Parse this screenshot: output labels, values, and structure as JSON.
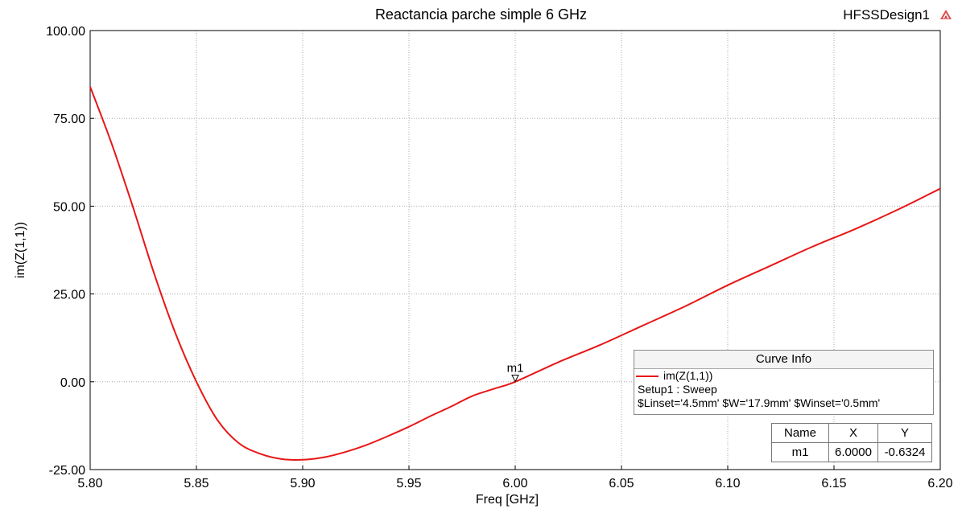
{
  "header": {
    "title": "Reactancia parche simple 6 GHz",
    "design_name": "HFSSDesign1",
    "design_icon": "ansys-logo-icon"
  },
  "chart_data": {
    "type": "line",
    "title": "Reactancia parche simple 6 GHz",
    "xlabel": "Freq [GHz]",
    "ylabel": "im(Z(1,1))",
    "xlim": [
      5.8,
      6.2
    ],
    "ylim": [
      -25.0,
      100.0
    ],
    "xticks": [
      "5.80",
      "5.85",
      "5.90",
      "5.95",
      "6.00",
      "6.05",
      "6.10",
      "6.15",
      "6.20"
    ],
    "yticks": [
      "100.00",
      "75.00",
      "50.00",
      "25.00",
      "0.00",
      "-25.00"
    ],
    "grid": true,
    "series": [
      {
        "name": "im(Z(1,1))",
        "color": "#e81616",
        "x": [
          5.8,
          5.81,
          5.82,
          5.83,
          5.84,
          5.85,
          5.86,
          5.87,
          5.88,
          5.89,
          5.9,
          5.91,
          5.92,
          5.93,
          5.94,
          5.95,
          5.96,
          5.97,
          5.98,
          5.99,
          6.0,
          6.02,
          6.04,
          6.06,
          6.08,
          6.1,
          6.12,
          6.14,
          6.16,
          6.18,
          6.2
        ],
        "y": [
          84.0,
          68.0,
          50.0,
          31.0,
          14.0,
          0.0,
          -11.0,
          -17.5,
          -20.5,
          -22.0,
          -22.2,
          -21.5,
          -20.0,
          -18.0,
          -15.5,
          -12.8,
          -9.8,
          -7.0,
          -4.0,
          -2.0,
          0.0,
          5.5,
          10.5,
          16.0,
          21.5,
          27.5,
          33.0,
          38.5,
          43.5,
          49.0,
          55.0
        ]
      }
    ],
    "markers": [
      {
        "name": "m1",
        "x": 6.0,
        "y": -0.6324
      }
    ]
  },
  "curve_info": {
    "header": "Curve Info",
    "trace_name": "im(Z(1,1))",
    "setup": "Setup1 : Sweep",
    "params": "$Linset='4.5mm' $W='17.9mm' $Winset='0.5mm'"
  },
  "marker_table": {
    "headers": [
      "Name",
      "X",
      "Y"
    ],
    "rows": [
      [
        "m1",
        "6.0000",
        "-0.6324"
      ]
    ]
  }
}
